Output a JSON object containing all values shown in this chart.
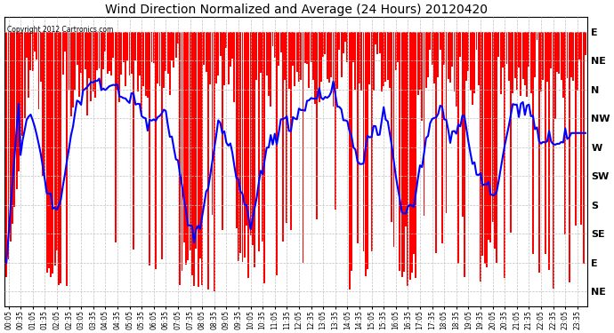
{
  "title": "Wind Direction Normalized and Average (24 Hours) 20120420",
  "copyright_text": "Copyright 2012 Cartronics.com",
  "background_color": "#ffffff",
  "plot_bg_color": "#ffffff",
  "grid_color": "#c0c0c0",
  "bar_color": "#ff0000",
  "line_color": "#0000ff",
  "title_fontsize": 10,
  "ytick_labels": [
    "E",
    "NE",
    "N",
    "NW",
    "W",
    "SW",
    "S",
    "SE",
    "E",
    "NE"
  ],
  "ytick_values": [
    9,
    8,
    7,
    6,
    5,
    4,
    3,
    2,
    1,
    0
  ],
  "ylim": [
    -0.5,
    9.5
  ],
  "n_points": 288,
  "seed": 12345
}
